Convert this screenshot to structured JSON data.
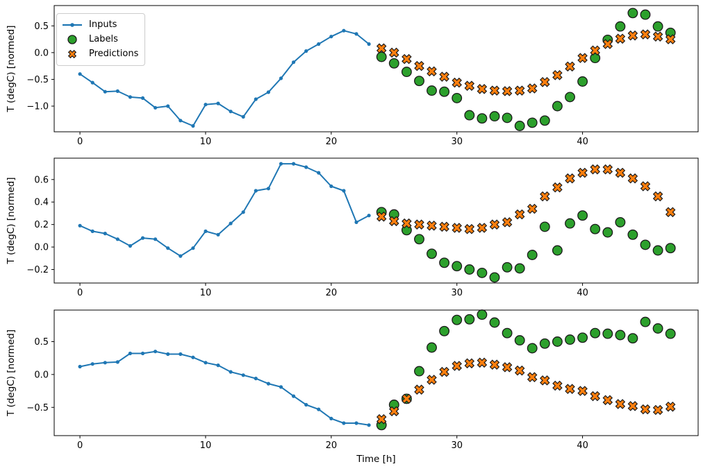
{
  "legend": {
    "items": [
      {
        "label": "Inputs",
        "marker": "line-dot",
        "color": "#1f77b4"
      },
      {
        "label": "Labels",
        "marker": "circle",
        "color": "#2ca02c"
      },
      {
        "label": "Predictions",
        "marker": "X",
        "color": "#ff7f0e"
      }
    ]
  },
  "colors": {
    "inputs": "#1f77b4",
    "labels": "#2ca02c",
    "predictions": "#ff7f0e",
    "marker_edge": "#1a1a1a",
    "axis": "#000000",
    "background": "#ffffff"
  },
  "chart_data": [
    {
      "type": "line",
      "ylabel": "T (degC) [normed]",
      "xlabel": "",
      "grid": false,
      "xlim": [
        -2.05,
        49.2
      ],
      "ylim": [
        -1.48,
        0.88
      ],
      "xticks": [
        {
          "value": 0,
          "label": "0"
        },
        {
          "value": 10,
          "label": "10"
        },
        {
          "value": 20,
          "label": "20"
        },
        {
          "value": 30,
          "label": "30"
        },
        {
          "value": 40,
          "label": "40"
        }
      ],
      "yticks": [
        {
          "value": 0.5,
          "label": "0.5"
        },
        {
          "value": 0.0,
          "label": "0.0"
        },
        {
          "value": -0.5,
          "label": "−0.5"
        },
        {
          "value": -1.0,
          "label": "−1.0"
        }
      ],
      "series": [
        {
          "name": "Inputs",
          "plot": "line",
          "color": "#1f77b4",
          "x": [
            0,
            1,
            2,
            3,
            4,
            5,
            6,
            7,
            8,
            9,
            10,
            11,
            12,
            13,
            14,
            15,
            16,
            17,
            18,
            19,
            20,
            21,
            22,
            23
          ],
          "values": [
            -0.4,
            -0.56,
            -0.73,
            -0.72,
            -0.83,
            -0.85,
            -1.03,
            -1.0,
            -1.27,
            -1.37,
            -0.97,
            -0.95,
            -1.1,
            -1.2,
            -0.87,
            -0.74,
            -0.48,
            -0.18,
            0.03,
            0.16,
            0.3,
            0.41,
            0.35,
            0.16
          ]
        },
        {
          "name": "Labels",
          "plot": "scatter",
          "marker": "circle",
          "color": "#2ca02c",
          "edge": "#1a1a1a",
          "x": [
            24,
            25,
            26,
            27,
            28,
            29,
            30,
            31,
            32,
            33,
            34,
            35,
            36,
            37,
            38,
            39,
            40,
            41,
            42,
            43,
            44,
            45,
            46,
            47
          ],
          "values": [
            -0.08,
            -0.2,
            -0.36,
            -0.53,
            -0.71,
            -0.73,
            -0.85,
            -1.17,
            -1.23,
            -1.19,
            -1.22,
            -1.37,
            -1.31,
            -1.27,
            -1.0,
            -0.83,
            -0.54,
            -0.1,
            0.24,
            0.49,
            0.74,
            0.71,
            0.49,
            0.37
          ]
        },
        {
          "name": "Predictions",
          "plot": "scatter",
          "marker": "X",
          "color": "#ff7f0e",
          "edge": "#1a1a1a",
          "x": [
            24,
            25,
            26,
            27,
            28,
            29,
            30,
            31,
            32,
            33,
            34,
            35,
            36,
            37,
            38,
            39,
            40,
            41,
            42,
            43,
            44,
            45,
            46,
            47
          ],
          "values": [
            0.08,
            0.0,
            -0.12,
            -0.25,
            -0.35,
            -0.45,
            -0.56,
            -0.62,
            -0.68,
            -0.71,
            -0.72,
            -0.71,
            -0.67,
            -0.55,
            -0.42,
            -0.26,
            -0.1,
            0.04,
            0.16,
            0.26,
            0.32,
            0.34,
            0.3,
            0.25
          ]
        }
      ]
    },
    {
      "type": "line",
      "ylabel": "T (degC) [normed]",
      "xlabel": "",
      "grid": false,
      "xlim": [
        -2.05,
        49.2
      ],
      "ylim": [
        -0.32,
        0.79
      ],
      "xticks": [
        {
          "value": 0,
          "label": "0"
        },
        {
          "value": 10,
          "label": "10"
        },
        {
          "value": 20,
          "label": "20"
        },
        {
          "value": 30,
          "label": "30"
        },
        {
          "value": 40,
          "label": "40"
        }
      ],
      "yticks": [
        {
          "value": 0.6,
          "label": "0.6"
        },
        {
          "value": 0.4,
          "label": "0.4"
        },
        {
          "value": 0.2,
          "label": "0.2"
        },
        {
          "value": 0.0,
          "label": "0.0"
        },
        {
          "value": -0.2,
          "label": "−0.2"
        }
      ],
      "series": [
        {
          "name": "Inputs",
          "plot": "line",
          "color": "#1f77b4",
          "x": [
            0,
            1,
            2,
            3,
            4,
            5,
            6,
            7,
            8,
            9,
            10,
            11,
            12,
            13,
            14,
            15,
            16,
            17,
            18,
            19,
            20,
            21,
            22,
            23
          ],
          "values": [
            0.19,
            0.14,
            0.12,
            0.07,
            0.01,
            0.08,
            0.07,
            -0.01,
            -0.08,
            -0.01,
            0.14,
            0.11,
            0.21,
            0.31,
            0.5,
            0.52,
            0.74,
            0.74,
            0.71,
            0.66,
            0.54,
            0.5,
            0.22,
            0.28
          ]
        },
        {
          "name": "Labels",
          "plot": "scatter",
          "marker": "circle",
          "color": "#2ca02c",
          "edge": "#1a1a1a",
          "x": [
            24,
            25,
            26,
            27,
            28,
            29,
            30,
            31,
            32,
            33,
            34,
            35,
            36,
            37,
            38,
            39,
            40,
            41,
            42,
            43,
            44,
            45,
            46,
            47
          ],
          "values": [
            0.31,
            0.29,
            0.15,
            0.07,
            -0.06,
            -0.14,
            -0.17,
            -0.2,
            -0.23,
            -0.27,
            -0.18,
            -0.19,
            -0.07,
            0.18,
            -0.03,
            0.21,
            0.28,
            0.16,
            0.13,
            0.22,
            0.11,
            0.02,
            -0.03,
            -0.01
          ]
        },
        {
          "name": "Predictions",
          "plot": "scatter",
          "marker": "X",
          "color": "#ff7f0e",
          "edge": "#1a1a1a",
          "x": [
            24,
            25,
            26,
            27,
            28,
            29,
            30,
            31,
            32,
            33,
            34,
            35,
            36,
            37,
            38,
            39,
            40,
            41,
            42,
            43,
            44,
            45,
            46,
            47
          ],
          "values": [
            0.27,
            0.23,
            0.21,
            0.2,
            0.19,
            0.18,
            0.17,
            0.16,
            0.17,
            0.2,
            0.22,
            0.29,
            0.34,
            0.45,
            0.53,
            0.61,
            0.66,
            0.69,
            0.69,
            0.66,
            0.61,
            0.54,
            0.45,
            0.31
          ]
        }
      ]
    },
    {
      "type": "line",
      "ylabel": "T (degC) [normed]",
      "xlabel": "Time [h]",
      "grid": false,
      "xlim": [
        -2.05,
        49.2
      ],
      "ylim": [
        -0.93,
        0.98
      ],
      "xticks": [
        {
          "value": 0,
          "label": "0"
        },
        {
          "value": 10,
          "label": "10"
        },
        {
          "value": 20,
          "label": "20"
        },
        {
          "value": 30,
          "label": "30"
        },
        {
          "value": 40,
          "label": "40"
        }
      ],
      "yticks": [
        {
          "value": 0.5,
          "label": "0.5"
        },
        {
          "value": 0.0,
          "label": "0.0"
        },
        {
          "value": -0.5,
          "label": "−0.5"
        }
      ],
      "series": [
        {
          "name": "Inputs",
          "plot": "line",
          "color": "#1f77b4",
          "x": [
            0,
            1,
            2,
            3,
            4,
            5,
            6,
            7,
            8,
            9,
            10,
            11,
            12,
            13,
            14,
            15,
            16,
            17,
            18,
            19,
            20,
            21,
            22,
            23
          ],
          "values": [
            0.12,
            0.16,
            0.18,
            0.19,
            0.32,
            0.32,
            0.35,
            0.31,
            0.31,
            0.26,
            0.18,
            0.14,
            0.04,
            -0.01,
            -0.06,
            -0.14,
            -0.19,
            -0.33,
            -0.46,
            -0.53,
            -0.67,
            -0.74,
            -0.74,
            -0.77
          ]
        },
        {
          "name": "Labels",
          "plot": "scatter",
          "marker": "circle",
          "color": "#2ca02c",
          "edge": "#1a1a1a",
          "x": [
            24,
            25,
            26,
            27,
            28,
            29,
            30,
            31,
            32,
            33,
            34,
            35,
            36,
            37,
            38,
            39,
            40,
            41,
            42,
            43,
            44,
            45,
            46,
            47
          ],
          "values": [
            -0.77,
            -0.46,
            -0.37,
            0.05,
            0.41,
            0.66,
            0.83,
            0.84,
            0.91,
            0.79,
            0.63,
            0.52,
            0.4,
            0.47,
            0.5,
            0.53,
            0.56,
            0.63,
            0.62,
            0.6,
            0.55,
            0.8,
            0.7,
            0.62
          ]
        },
        {
          "name": "Predictions",
          "plot": "scatter",
          "marker": "X",
          "color": "#ff7f0e",
          "edge": "#1a1a1a",
          "x": [
            24,
            25,
            26,
            27,
            28,
            29,
            30,
            31,
            32,
            33,
            34,
            35,
            36,
            37,
            38,
            39,
            40,
            41,
            42,
            43,
            44,
            45,
            46,
            47
          ],
          "values": [
            -0.68,
            -0.56,
            -0.37,
            -0.23,
            -0.08,
            0.04,
            0.13,
            0.17,
            0.18,
            0.15,
            0.11,
            0.06,
            -0.04,
            -0.09,
            -0.17,
            -0.22,
            -0.25,
            -0.33,
            -0.39,
            -0.45,
            -0.48,
            -0.53,
            -0.54,
            -0.49
          ]
        }
      ]
    }
  ]
}
